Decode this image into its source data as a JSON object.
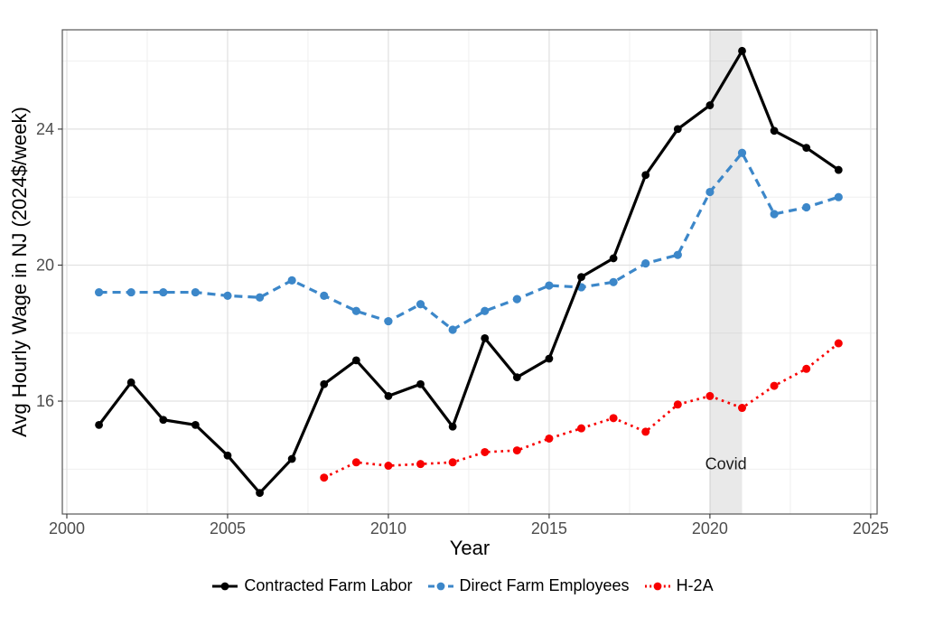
{
  "chart_data": {
    "type": "line",
    "title": "",
    "xlabel": "Year",
    "ylabel": "Avg Hourly Wage in NJ (2024$/week)",
    "grid": true,
    "legend_position": "bottom",
    "xlim": [
      1999.86,
      2025.2
    ],
    "ylim": [
      12.68,
      26.92
    ],
    "x_ticks": [
      2000,
      2005,
      2010,
      2015,
      2020,
      2025
    ],
    "y_ticks": [
      16,
      20,
      24
    ],
    "x_minor_ticks": [
      2002.5,
      2007.5,
      2012.5,
      2017.5,
      2022.5
    ],
    "y_minor_ticks": [
      14,
      18,
      22,
      26
    ],
    "annotation": {
      "label": "Covid",
      "x_start": 2020,
      "x_end": 2021,
      "label_x": 2020.5,
      "label_y": 14.0,
      "band_color": "#999999",
      "band_opacity": 0.22
    },
    "series": [
      {
        "name": "Contracted Farm Labor",
        "color": "#000000",
        "style": "solid",
        "x": [
          2001,
          2002,
          2003,
          2004,
          2005,
          2006,
          2007,
          2008,
          2009,
          2010,
          2011,
          2012,
          2013,
          2014,
          2015,
          2016,
          2017,
          2018,
          2019,
          2020,
          2021,
          2022,
          2023,
          2024
        ],
        "values": [
          15.3,
          16.55,
          15.45,
          15.3,
          14.4,
          13.3,
          14.3,
          16.5,
          17.2,
          16.15,
          16.5,
          15.25,
          17.85,
          16.7,
          17.25,
          19.65,
          20.2,
          22.65,
          24.0,
          24.7,
          26.3,
          23.95,
          23.45,
          22.8
        ]
      },
      {
        "name": "Direct Farm Employees",
        "color": "#3C87C9",
        "style": "dashed",
        "x": [
          2001,
          2002,
          2003,
          2004,
          2005,
          2006,
          2007,
          2008,
          2009,
          2010,
          2011,
          2012,
          2013,
          2014,
          2015,
          2016,
          2017,
          2018,
          2019,
          2020,
          2021,
          2022,
          2023,
          2024
        ],
        "values": [
          19.2,
          19.2,
          19.2,
          19.2,
          19.1,
          19.05,
          19.55,
          19.1,
          18.65,
          18.35,
          18.85,
          18.1,
          18.65,
          19.0,
          19.4,
          19.35,
          19.5,
          20.05,
          20.3,
          22.15,
          23.3,
          21.5,
          21.7,
          22.0
        ]
      },
      {
        "name": "H-2A",
        "color": "#F80000",
        "style": "dotted",
        "x": [
          2008,
          2009,
          2010,
          2011,
          2012,
          2013,
          2014,
          2015,
          2016,
          2017,
          2018,
          2019,
          2020,
          2021,
          2022,
          2023,
          2024
        ],
        "values": [
          13.75,
          14.2,
          14.1,
          14.15,
          14.2,
          14.5,
          14.55,
          14.9,
          15.2,
          15.5,
          15.1,
          15.9,
          16.15,
          15.8,
          16.45,
          16.95,
          17.7
        ]
      }
    ]
  }
}
